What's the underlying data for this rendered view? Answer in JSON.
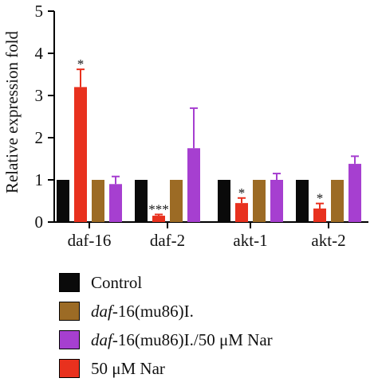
{
  "chart_data": {
    "type": "bar",
    "ylabel": "Relative expression fold",
    "ylim": [
      0,
      5
    ],
    "yticks": [
      "0",
      "1",
      "2",
      "3",
      "4",
      "5"
    ],
    "categories": [
      "daf-16",
      "daf-2",
      "akt-1",
      "akt-2"
    ],
    "series": [
      {
        "name": "Control",
        "color": "#0a0a0a",
        "values": [
          1,
          1,
          1,
          1
        ],
        "errors": [
          0,
          0,
          0,
          0
        ],
        "marks": [
          "",
          "",
          "",
          ""
        ]
      },
      {
        "name": "50 μM Nar",
        "color": "#e8311e",
        "values": [
          3.2,
          0.15,
          0.45,
          0.32
        ],
        "errors": [
          0.42,
          0.03,
          0.12,
          0.12
        ],
        "marks": [
          "*",
          "***",
          "*",
          "*"
        ]
      },
      {
        "name": "daf-16(mu86)I.",
        "color": "#9c6b25",
        "values": [
          1,
          1,
          1,
          1
        ],
        "errors": [
          0,
          0,
          0,
          0
        ],
        "marks": [
          "",
          "",
          "",
          ""
        ]
      },
      {
        "name": "daf-16(mu86)I./50 μM Nar",
        "color": "#a63fd0",
        "values": [
          0.9,
          1.75,
          1.0,
          1.38
        ],
        "errors": [
          0.18,
          0.95,
          0.15,
          0.18
        ],
        "marks": [
          "",
          "",
          "",
          ""
        ]
      }
    ],
    "legend": [
      {
        "italic": "",
        "text": "Control",
        "color": "#0a0a0a"
      },
      {
        "italic": "daf",
        "text": "-16(mu86)I.",
        "color": "#9c6b25"
      },
      {
        "italic": "daf",
        "text": "-16(mu86)I./50 μM Nar",
        "color": "#a63fd0"
      },
      {
        "italic": "",
        "text": "50 μM Nar",
        "color": "#e8311e"
      }
    ],
    "legend_position": "bottom",
    "grid": false
  }
}
